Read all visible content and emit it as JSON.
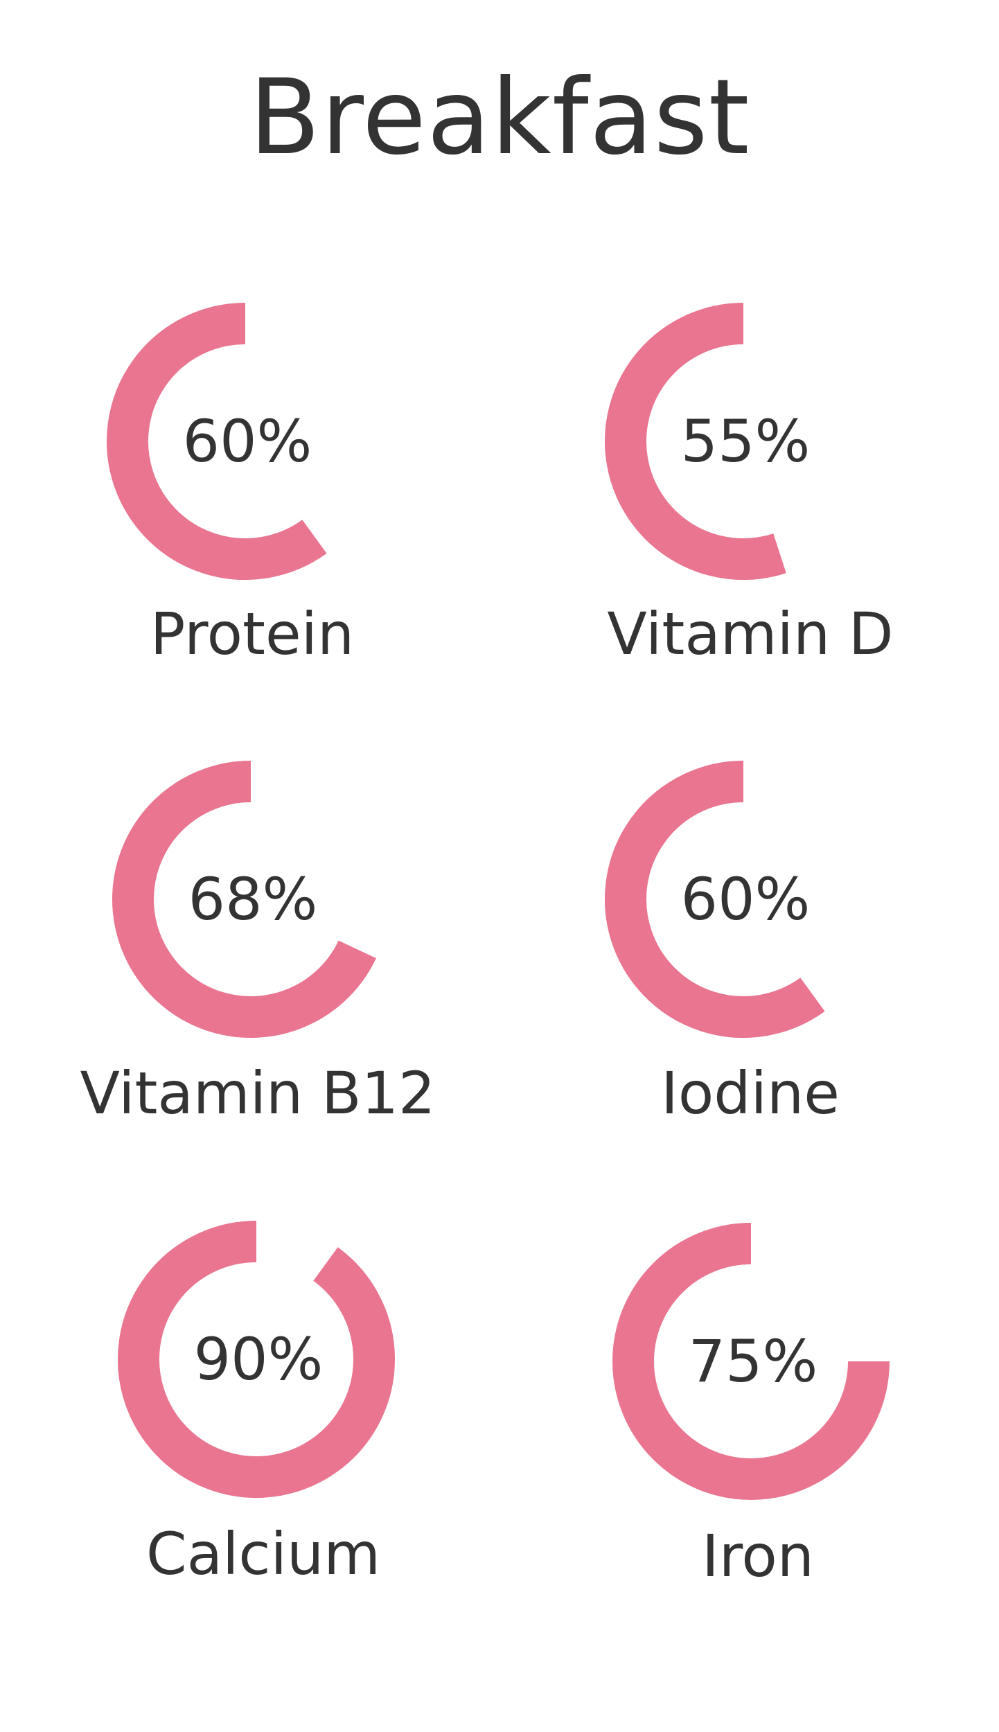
{
  "title": "Breakfast",
  "colors": {
    "ring": "#E97590",
    "text": "#333333",
    "background": "#FFFFFF"
  },
  "chart_data": {
    "type": "radial-progress",
    "title": "Breakfast",
    "unit": "%",
    "items": [
      {
        "label": "Protein",
        "value": 60,
        "display": "60%"
      },
      {
        "label": "Vitamin D",
        "value": 55,
        "display": "55%"
      },
      {
        "label": "Vitamin B12",
        "value": 68,
        "display": "68%"
      },
      {
        "label": "Iodine",
        "value": 60,
        "display": "60%"
      },
      {
        "label": "Calcium",
        "value": 90,
        "display": "90%"
      },
      {
        "label": "Iron",
        "value": 75,
        "display": "75%"
      }
    ]
  }
}
